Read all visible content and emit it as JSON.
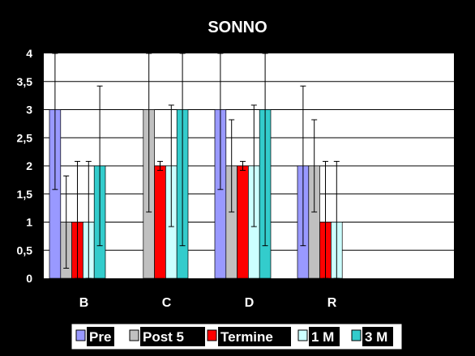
{
  "chart_data": {
    "type": "bar",
    "title": "SONNO",
    "categories": [
      "B",
      "C",
      "D",
      "R"
    ],
    "ylim": [
      0,
      4
    ],
    "yticks": [
      "0",
      "0,5",
      "1",
      "1,5",
      "2",
      "2,5",
      "3",
      "3,5",
      "4"
    ],
    "grid": true,
    "legend_position": "bottom",
    "series": [
      {
        "name": "Pre",
        "color": "#9999ff",
        "values": [
          3,
          null,
          3,
          2
        ],
        "error": [
          1.42,
          null,
          1.42,
          1.42
        ]
      },
      {
        "name": "Post 5",
        "color": "#c0c0c0",
        "values": [
          1,
          3,
          2,
          2
        ],
        "error": [
          0.82,
          1.82,
          0.82,
          0.82
        ]
      },
      {
        "name": "Termine",
        "color": "#ff0000",
        "values": [
          1,
          2,
          2,
          1
        ],
        "error": [
          1.08,
          0.08,
          0.08,
          1.08
        ]
      },
      {
        "name": "1 M",
        "color": "#ccffff",
        "values": [
          1,
          2,
          2,
          1
        ],
        "error": [
          1.08,
          1.08,
          1.08,
          1.08
        ]
      },
      {
        "name": "3 M",
        "color": "#33cccc",
        "values": [
          2,
          3,
          3,
          null
        ],
        "error": [
          1.42,
          2.42,
          2.42,
          null
        ]
      }
    ]
  }
}
